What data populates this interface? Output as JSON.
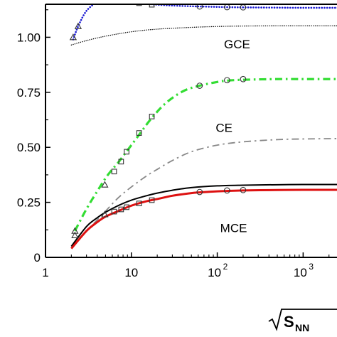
{
  "chart_data": {
    "type": "line",
    "title": "",
    "xlabel": {
      "base": "S",
      "sub": "NN",
      "radical": true
    },
    "ylabel": "",
    "x_scale": "log",
    "xlim": [
      1,
      3000
    ],
    "ylim": [
      0,
      1.15
    ],
    "x_ticks": [
      {
        "value": 1,
        "label": "1"
      },
      {
        "value": 10,
        "label": "10"
      },
      {
        "value": 100,
        "label": "10",
        "exp": "2"
      },
      {
        "value": 1000,
        "label": "10",
        "exp": "3"
      }
    ],
    "y_ticks": [
      {
        "value": 0,
        "label": "0"
      },
      {
        "value": 0.25,
        "label": "0.25"
      },
      {
        "value": 0.5,
        "label": "0.50"
      },
      {
        "value": 0.75,
        "label": "0.75"
      },
      {
        "value": 1.0,
        "label": "1.00"
      }
    ],
    "annotations": [
      {
        "text": "GCE",
        "x": 170,
        "y": 0.95
      },
      {
        "text": "CE",
        "x": 120,
        "y": 0.57
      },
      {
        "text": "MCE",
        "x": 155,
        "y": 0.115
      }
    ],
    "series": [
      {
        "key": "gce-model",
        "color": "#1a1ad1",
        "dash": "dotted",
        "x": [
          2.1,
          2.4,
          3,
          4,
          5,
          6,
          7,
          8,
          10,
          14,
          20,
          30,
          50,
          62,
          100,
          130,
          200,
          400,
          1000,
          3000
        ],
        "y": [
          0.99,
          1.05,
          1.12,
          1.16,
          1.17,
          1.17,
          1.167,
          1.163,
          1.158,
          1.153,
          1.148,
          1.144,
          1.141,
          1.14,
          1.138,
          1.137,
          1.136,
          1.135,
          1.134,
          1.134
        ]
      },
      {
        "key": "gce-reference",
        "color": "#000000",
        "dash": "fine-dotted",
        "x": [
          2,
          3,
          5,
          10,
          20,
          50,
          100,
          200,
          500,
          1000,
          3000
        ],
        "y": [
          0.965,
          0.985,
          1.005,
          1.025,
          1.037,
          1.045,
          1.049,
          1.051,
          1.052,
          1.052,
          1.052
        ]
      },
      {
        "key": "ce-model",
        "color": "#33dd33",
        "dash": "dash-dot",
        "x": [
          2.2,
          3,
          4,
          5,
          6,
          7,
          8,
          10,
          13,
          17,
          25,
          40,
          62,
          100,
          130,
          200,
          500,
          1000,
          3000
        ],
        "y": [
          0.12,
          0.22,
          0.3,
          0.36,
          0.4,
          0.43,
          0.46,
          0.51,
          0.57,
          0.63,
          0.7,
          0.755,
          0.78,
          0.797,
          0.803,
          0.807,
          0.81,
          0.81,
          0.81
        ]
      },
      {
        "key": "ce-reference",
        "color": "#888888",
        "dash": "dash-dot",
        "x": [
          2,
          3,
          4,
          5,
          7,
          10,
          15,
          20,
          30,
          50,
          100,
          200,
          500,
          1000,
          3000
        ],
        "y": [
          0.05,
          0.12,
          0.17,
          0.21,
          0.27,
          0.32,
          0.37,
          0.4,
          0.44,
          0.48,
          0.51,
          0.525,
          0.535,
          0.538,
          0.54
        ]
      },
      {
        "key": "mce-reference",
        "color": "#000000",
        "dash": "solid",
        "x": [
          2,
          3,
          4,
          5,
          7,
          10,
          15,
          20,
          30,
          50,
          100,
          200,
          500,
          1000,
          3000
        ],
        "y": [
          0.05,
          0.14,
          0.18,
          0.205,
          0.235,
          0.26,
          0.28,
          0.292,
          0.305,
          0.317,
          0.325,
          0.328,
          0.33,
          0.331,
          0.331
        ]
      },
      {
        "key": "mce-model",
        "color": "#dd1111",
        "dash": "solid",
        "x": [
          2,
          3,
          4,
          5,
          7,
          10,
          15,
          20,
          30,
          50,
          62,
          100,
          200,
          500,
          1000,
          3000
        ],
        "y": [
          0.04,
          0.12,
          0.16,
          0.185,
          0.21,
          0.235,
          0.255,
          0.265,
          0.28,
          0.292,
          0.295,
          0.3,
          0.304,
          0.306,
          0.307,
          0.307
        ]
      }
    ],
    "markers": [
      {
        "shape": "triangle",
        "x": 2.1,
        "y": 1.0
      },
      {
        "shape": "triangle",
        "x": 2.4,
        "y": 1.05
      },
      {
        "shape": "triangle",
        "x": 4.9,
        "y": 1.17
      },
      {
        "shape": "square",
        "x": 6.3,
        "y": 1.17
      },
      {
        "shape": "square",
        "x": 7.6,
        "y": 1.167
      },
      {
        "shape": "square",
        "x": 8.8,
        "y": 1.163
      },
      {
        "shape": "square",
        "x": 12.3,
        "y": 1.155
      },
      {
        "shape": "square",
        "x": 17.3,
        "y": 1.148
      },
      {
        "shape": "circle",
        "x": 62.4,
        "y": 1.14
      },
      {
        "shape": "circle",
        "x": 130,
        "y": 1.137
      },
      {
        "shape": "circle",
        "x": 200,
        "y": 1.136
      },
      {
        "shape": "triangle",
        "x": 2.2,
        "y": 0.12
      },
      {
        "shape": "triangle",
        "x": 4.9,
        "y": 0.33
      },
      {
        "shape": "square",
        "x": 6.3,
        "y": 0.39
      },
      {
        "shape": "square",
        "x": 7.6,
        "y": 0.435
      },
      {
        "shape": "square",
        "x": 8.8,
        "y": 0.48
      },
      {
        "shape": "square",
        "x": 12.3,
        "y": 0.565
      },
      {
        "shape": "square",
        "x": 17.3,
        "y": 0.64
      },
      {
        "shape": "circle",
        "x": 62.4,
        "y": 0.78
      },
      {
        "shape": "circle",
        "x": 130,
        "y": 0.805
      },
      {
        "shape": "circle",
        "x": 200,
        "y": 0.81
      },
      {
        "shape": "triangle",
        "x": 2.2,
        "y": 0.1
      },
      {
        "shape": "triangle",
        "x": 4.9,
        "y": 0.195
      },
      {
        "shape": "square",
        "x": 6.3,
        "y": 0.208
      },
      {
        "shape": "square",
        "x": 7.6,
        "y": 0.218
      },
      {
        "shape": "square",
        "x": 8.8,
        "y": 0.228
      },
      {
        "shape": "square",
        "x": 12.3,
        "y": 0.245
      },
      {
        "shape": "square",
        "x": 17.3,
        "y": 0.26
      },
      {
        "shape": "circle",
        "x": 62.4,
        "y": 0.297
      },
      {
        "shape": "circle",
        "x": 130,
        "y": 0.304
      },
      {
        "shape": "circle",
        "x": 200,
        "y": 0.306
      }
    ]
  }
}
